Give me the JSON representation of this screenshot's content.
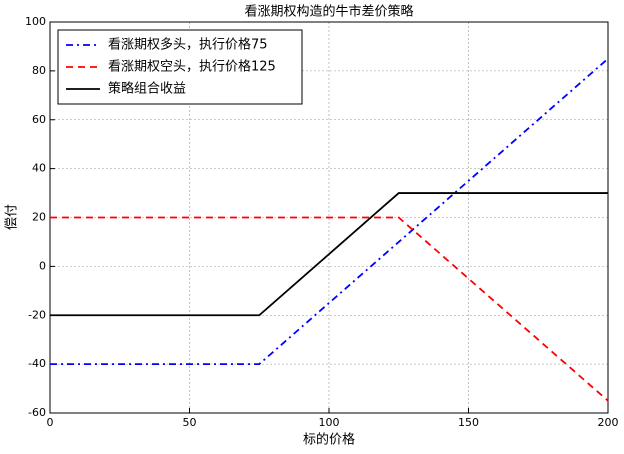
{
  "chart_data": {
    "type": "line",
    "title": "看涨期权构造的牛市差价策略",
    "x_label": "标的价格",
    "y_label": "偿付",
    "x": [
      0,
      75,
      125,
      200
    ],
    "series": [
      {
        "name": "看涨期权多头，执行价格75",
        "color": "#0000ff",
        "dash": "dashdot",
        "values": [
          -40,
          -40,
          10,
          85
        ]
      },
      {
        "name": "看涨期权空头，执行价格125",
        "color": "#ff0000",
        "dash": "dashed",
        "values": [
          20,
          20,
          20,
          -55
        ]
      },
      {
        "name": "策略组合收益",
        "color": "#000000",
        "dash": "solid",
        "values": [
          -20,
          -20,
          30,
          30
        ]
      }
    ],
    "xlim": [
      0,
      200
    ],
    "xticks": [
      0,
      50,
      100,
      150,
      200
    ],
    "ylim": [
      -60,
      100
    ],
    "yticks": [
      -60,
      -40,
      -20,
      0,
      20,
      40,
      60,
      80,
      100
    ],
    "grid": true,
    "legend": "upper left"
  }
}
